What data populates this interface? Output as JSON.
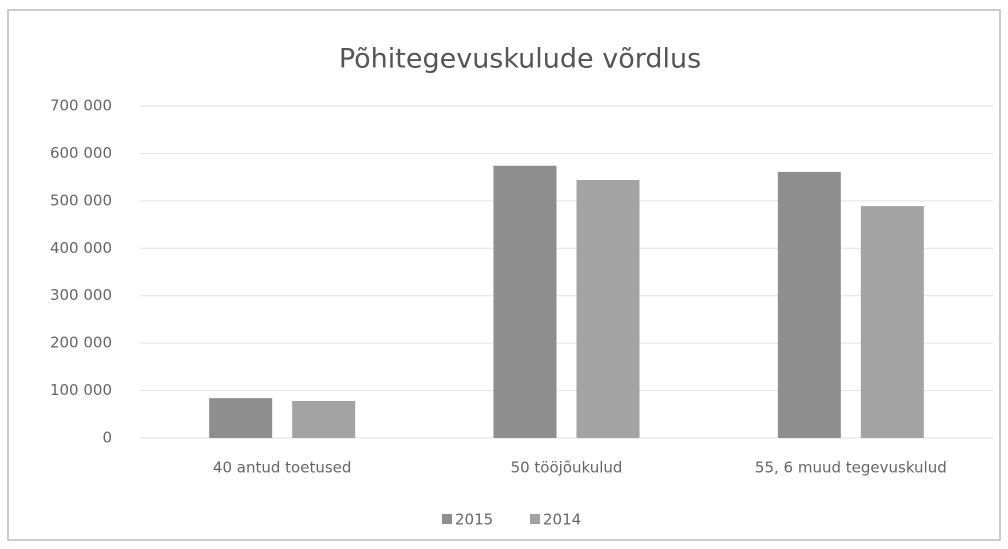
{
  "chart_data": {
    "type": "bar",
    "title": "Põhitegevuskulude võrdlus",
    "categories": [
      "40 antud toetused",
      "50 tööjõukulud",
      "55, 6 muud tegevuskulud"
    ],
    "series": [
      {
        "name": "2015",
        "color": "#8e8e8e",
        "values": [
          84000,
          574000,
          561000
        ]
      },
      {
        "name": "2014",
        "color": "#a3a3a3",
        "values": [
          78000,
          544000,
          489000
        ]
      }
    ],
    "ylim": [
      0,
      700000
    ],
    "yticks": [
      0,
      {
        "value": 100000,
        "label": "100 000"
      },
      {
        "value": 200000,
        "label": "200 000"
      },
      {
        "value": 300000,
        "label": "300 000"
      },
      {
        "value": 400000,
        "label": "400 000"
      },
      {
        "value": 500000,
        "label": "500 000"
      },
      {
        "value": 600000,
        "label": "600 000"
      },
      {
        "value": 700000,
        "label": "700 000"
      }
    ],
    "grid": true,
    "legend": "bottom"
  }
}
